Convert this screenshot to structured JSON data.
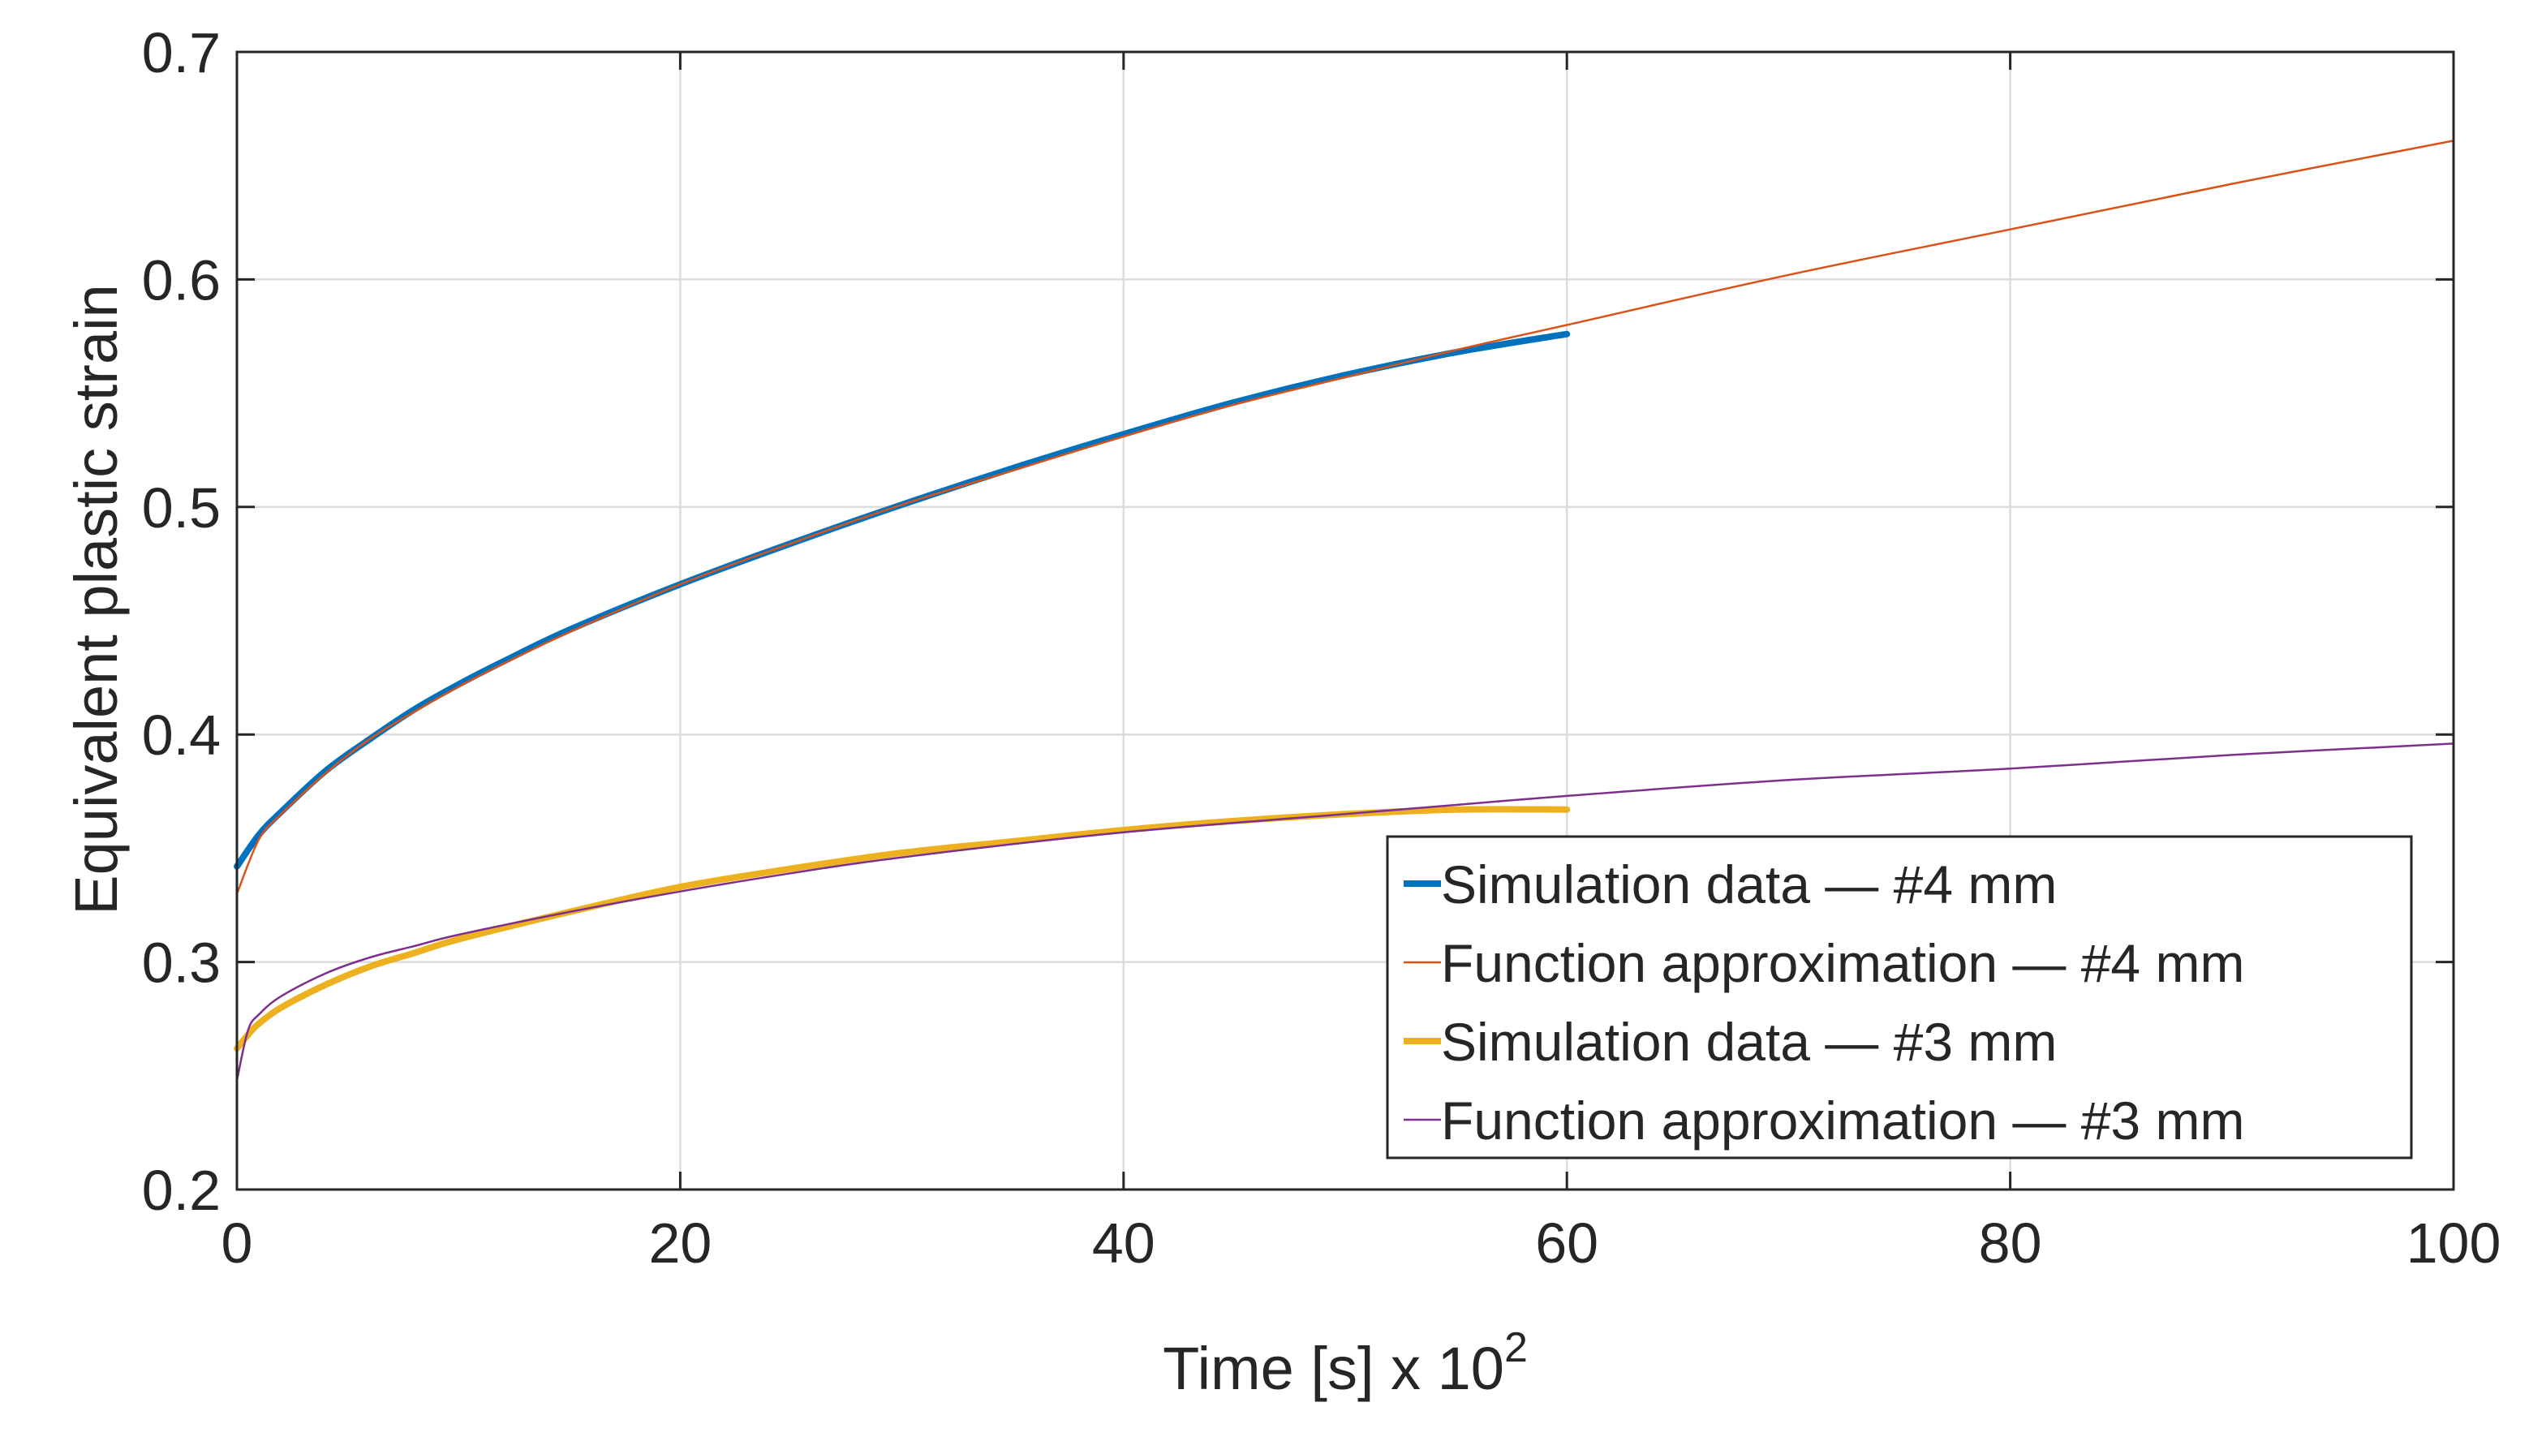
{
  "chart_data": {
    "type": "line",
    "title": "",
    "xlabel": "Time [s] x 10",
    "xlabel_exponent": "2",
    "ylabel": "Equivalent plastic strain",
    "xlim": [
      0,
      100
    ],
    "ylim": [
      0.2,
      0.7
    ],
    "xticks": [
      0,
      20,
      40,
      60,
      80,
      100
    ],
    "xtick_labels": [
      "0",
      "20",
      "40",
      "60",
      "80",
      "100"
    ],
    "yticks": [
      0.2,
      0.3,
      0.4,
      0.5,
      0.6,
      0.7
    ],
    "ytick_labels": [
      "0.2",
      "0.3",
      "0.4",
      "0.5",
      "0.6",
      "0.7"
    ],
    "grid": true,
    "legend_position": "bottom-right",
    "series": [
      {
        "name": "Simulation data — #4 mm",
        "color": "#0072BD",
        "line": "thick",
        "x": [
          0,
          1,
          2,
          4,
          6,
          8,
          10,
          12,
          15,
          20,
          25,
          30,
          35,
          40,
          45,
          50,
          55,
          60
        ],
        "y": [
          0.342,
          0.356,
          0.366,
          0.384,
          0.398,
          0.411,
          0.422,
          0.432,
          0.446,
          0.466,
          0.484,
          0.501,
          0.517,
          0.532,
          0.546,
          0.558,
          0.568,
          0.576
        ]
      },
      {
        "name": "Function approximation — #4 mm",
        "color": "#D95319",
        "line": "thin",
        "x": [
          0,
          1,
          2,
          4,
          6,
          8,
          10,
          12,
          15,
          20,
          25,
          30,
          35,
          40,
          45,
          50,
          55,
          60,
          70,
          80,
          90,
          100
        ],
        "y": [
          0.33,
          0.354,
          0.365,
          0.383,
          0.398,
          0.41,
          0.421,
          0.431,
          0.445,
          0.466,
          0.484,
          0.501,
          0.516,
          0.531,
          0.545,
          0.557,
          0.569,
          0.58,
          0.602,
          0.622,
          0.642,
          0.661
        ]
      },
      {
        "name": "Simulation data — #3 mm",
        "color": "#EDB120",
        "line": "thick",
        "x": [
          0,
          0.5,
          1,
          2,
          4,
          6,
          8,
          10,
          15,
          20,
          25,
          30,
          35,
          40,
          45,
          50,
          55,
          60
        ],
        "y": [
          0.262,
          0.268,
          0.273,
          0.28,
          0.29,
          0.298,
          0.304,
          0.31,
          0.322,
          0.333,
          0.341,
          0.348,
          0.353,
          0.358,
          0.362,
          0.365,
          0.367,
          0.367
        ]
      },
      {
        "name": "Function approximation — #3 mm",
        "color": "#7E2F8E",
        "line": "thin",
        "x": [
          0,
          0.5,
          1,
          2,
          4,
          6,
          8,
          10,
          15,
          20,
          25,
          30,
          40,
          50,
          60,
          70,
          80,
          90,
          100
        ],
        "y": [
          0.248,
          0.27,
          0.277,
          0.285,
          0.295,
          0.302,
          0.307,
          0.312,
          0.322,
          0.331,
          0.339,
          0.346,
          0.357,
          0.365,
          0.373,
          0.38,
          0.385,
          0.391,
          0.396
        ]
      }
    ]
  }
}
